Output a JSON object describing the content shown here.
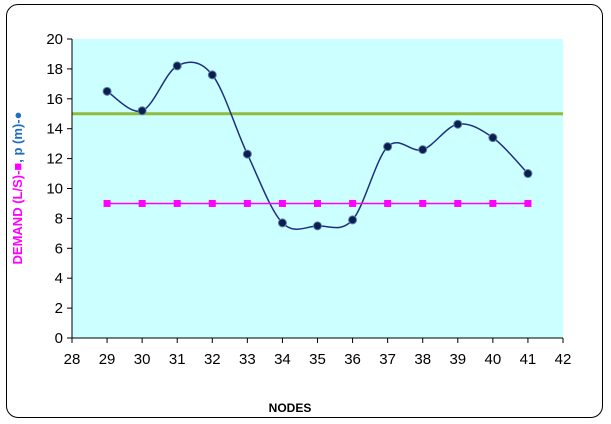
{
  "chart_data": {
    "type": "line",
    "title": "",
    "xlabel": "NODES",
    "ylabel_parts": [
      {
        "text": "DEMAND (L/S)-",
        "color": "#ff00ff"
      },
      {
        "text": "■",
        "color": "#ff00ff"
      },
      {
        "text": ",  p (m)-",
        "color": "#1f6fbf"
      },
      {
        "text": "●",
        "color": "#1f6fbf"
      }
    ],
    "xlim": [
      28,
      42
    ],
    "ylim": [
      0,
      20
    ],
    "xticks": [
      "28",
      "29",
      "30",
      "31",
      "32",
      "33",
      "34",
      "35",
      "36",
      "37",
      "38",
      "39",
      "40",
      "41",
      "42"
    ],
    "yticks": [
      "0",
      "2",
      "4",
      "6",
      "8",
      "10",
      "12",
      "14",
      "16",
      "18",
      "20"
    ],
    "grid": false,
    "plot_background": "#ccffff",
    "series": [
      {
        "key": "pressure",
        "marker": "circle",
        "color": "#1f2f80",
        "marker_color": "#0b1f4a",
        "x": [
          29,
          30,
          31,
          32,
          33,
          34,
          35,
          36,
          37,
          38,
          39,
          40,
          41
        ],
        "values": [
          16.5,
          15.2,
          18.2,
          17.6,
          12.3,
          7.7,
          7.5,
          7.9,
          12.8,
          12.6,
          14.3,
          13.4,
          11.0
        ]
      },
      {
        "key": "demand",
        "marker": "square",
        "color": "#ff00ff",
        "marker_color": "#ff00ff",
        "x": [
          29,
          30,
          31,
          32,
          33,
          34,
          35,
          36,
          37,
          38,
          39,
          40,
          41
        ],
        "values": [
          9,
          9,
          9,
          9,
          9,
          9,
          9,
          9,
          9,
          9,
          9,
          9,
          9
        ]
      }
    ],
    "reference_lines": [
      {
        "y": 15,
        "color": "#8fbc3f"
      }
    ]
  }
}
